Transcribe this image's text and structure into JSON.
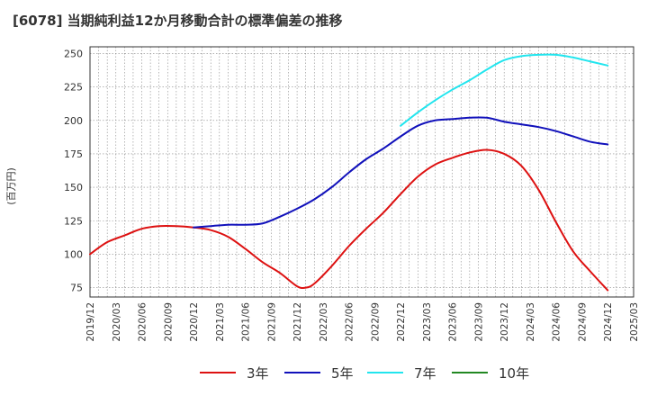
{
  "chart_data": {
    "type": "line",
    "title": "[6078]  当期純利益12か月移動合計の標準偏差の推移",
    "xlabel": "",
    "ylabel": "(百万円)",
    "x_range": [
      "2019/12",
      "2025/03"
    ],
    "ylim": [
      68,
      255
    ],
    "yticks": [
      75,
      100,
      125,
      150,
      175,
      200,
      225,
      250
    ],
    "xticks": [
      "2019/12",
      "2020/03",
      "2020/06",
      "2020/09",
      "2020/12",
      "2021/03",
      "2021/06",
      "2021/09",
      "2021/12",
      "2022/03",
      "2022/06",
      "2022/09",
      "2022/12",
      "2023/03",
      "2023/06",
      "2023/09",
      "2023/12",
      "2024/03",
      "2024/06",
      "2024/09",
      "2024/12",
      "2025/03"
    ],
    "grid": true,
    "legend_position": "bottom",
    "series": [
      {
        "name": "3年",
        "color": "#dd1111",
        "points": [
          [
            "2019/12",
            100
          ],
          [
            "2020/02",
            109
          ],
          [
            "2020/04",
            114
          ],
          [
            "2020/06",
            119
          ],
          [
            "2020/08",
            121
          ],
          [
            "2020/10",
            121
          ],
          [
            "2020/12",
            120
          ],
          [
            "2021/02",
            118
          ],
          [
            "2021/04",
            113
          ],
          [
            "2021/06",
            104
          ],
          [
            "2021/08",
            94
          ],
          [
            "2021/10",
            86
          ],
          [
            "2021/12",
            76
          ],
          [
            "2022/01",
            75
          ],
          [
            "2022/02",
            78
          ],
          [
            "2022/04",
            91
          ],
          [
            "2022/06",
            106
          ],
          [
            "2022/08",
            119
          ],
          [
            "2022/10",
            131
          ],
          [
            "2022/12",
            145
          ],
          [
            "2023/02",
            158
          ],
          [
            "2023/04",
            167
          ],
          [
            "2023/06",
            172
          ],
          [
            "2023/08",
            176
          ],
          [
            "2023/10",
            178
          ],
          [
            "2023/12",
            175
          ],
          [
            "2024/02",
            166
          ],
          [
            "2024/04",
            148
          ],
          [
            "2024/06",
            124
          ],
          [
            "2024/08",
            102
          ],
          [
            "2024/10",
            87
          ],
          [
            "2024/12",
            73
          ]
        ]
      },
      {
        "name": "5年",
        "color": "#1111bb",
        "points": [
          [
            "2020/12",
            120
          ],
          [
            "2021/02",
            121
          ],
          [
            "2021/04",
            122
          ],
          [
            "2021/06",
            122
          ],
          [
            "2021/08",
            123
          ],
          [
            "2021/10",
            128
          ],
          [
            "2021/12",
            134
          ],
          [
            "2022/02",
            141
          ],
          [
            "2022/04",
            150
          ],
          [
            "2022/06",
            161
          ],
          [
            "2022/08",
            171
          ],
          [
            "2022/10",
            179
          ],
          [
            "2022/12",
            188
          ],
          [
            "2023/02",
            196
          ],
          [
            "2023/04",
            200
          ],
          [
            "2023/06",
            201
          ],
          [
            "2023/08",
            202
          ],
          [
            "2023/10",
            202
          ],
          [
            "2023/12",
            199
          ],
          [
            "2024/02",
            197
          ],
          [
            "2024/04",
            195
          ],
          [
            "2024/06",
            192
          ],
          [
            "2024/08",
            188
          ],
          [
            "2024/10",
            184
          ],
          [
            "2024/12",
            182
          ]
        ]
      },
      {
        "name": "7年",
        "color": "#22e5ee",
        "points": [
          [
            "2022/12",
            196
          ],
          [
            "2023/02",
            206
          ],
          [
            "2023/04",
            215
          ],
          [
            "2023/06",
            223
          ],
          [
            "2023/08",
            230
          ],
          [
            "2023/10",
            238
          ],
          [
            "2023/12",
            245
          ],
          [
            "2024/02",
            248
          ],
          [
            "2024/04",
            249
          ],
          [
            "2024/06",
            249
          ],
          [
            "2024/08",
            247
          ],
          [
            "2024/10",
            244
          ],
          [
            "2024/12",
            241
          ]
        ]
      },
      {
        "name": "10年",
        "color": "#228822",
        "points": []
      }
    ]
  }
}
